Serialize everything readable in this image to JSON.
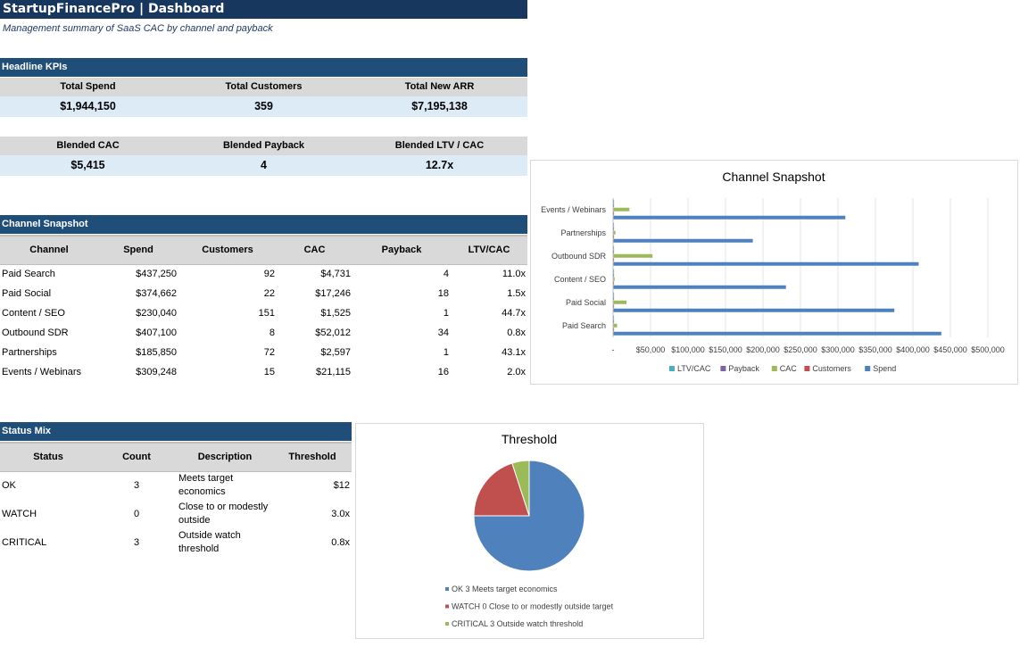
{
  "header": {
    "title": "StartupFinancePro | Dashboard",
    "subtitle": "Management summary of SaaS CAC by channel and payback"
  },
  "kpis": {
    "section_title": "Headline KPIs",
    "row1": [
      {
        "label": "Total Spend",
        "value": "$1,944,150"
      },
      {
        "label": "Total Customers",
        "value": "359"
      },
      {
        "label": "Total New ARR",
        "value": "$7,195,138"
      }
    ],
    "row2": [
      {
        "label": "Blended CAC",
        "value": "$5,415"
      },
      {
        "label": "Blended Payback",
        "value": "4"
      },
      {
        "label": "Blended LTV / CAC",
        "value": "12.7x"
      }
    ]
  },
  "channel_snapshot": {
    "section_title": "Channel Snapshot",
    "columns": [
      "Channel",
      "Spend",
      "Customers",
      "CAC",
      "Payback",
      "LTV/CAC"
    ],
    "rows": [
      [
        "Paid Search",
        "$437,250",
        "92",
        "$4,731",
        "4",
        "11.0x"
      ],
      [
        "Paid Social",
        "$374,662",
        "22",
        "$17,246",
        "18",
        "1.5x"
      ],
      [
        "Content / SEO",
        "$230,040",
        "151",
        "$1,525",
        "1",
        "44.7x"
      ],
      [
        "Outbound SDR",
        "$407,100",
        "8",
        "$52,012",
        "34",
        "0.8x"
      ],
      [
        "Partnerships",
        "$185,850",
        "72",
        "$2,597",
        "1",
        "43.1x"
      ],
      [
        "Events / Webinars",
        "$309,248",
        "15",
        "$21,115",
        "16",
        "2.0x"
      ]
    ]
  },
  "status_mix": {
    "section_title": "Status Mix",
    "columns": [
      "Status",
      "Count",
      "Description",
      "Threshold"
    ],
    "rows": [
      [
        "OK",
        "3",
        "Meets target economics",
        "$12"
      ],
      [
        "WATCH",
        "0",
        "Close to or modestly outside",
        "3.0x"
      ],
      [
        "CRITICAL",
        "3",
        "Outside watch threshold",
        "0.8x"
      ]
    ]
  },
  "chart_data": [
    {
      "type": "bar",
      "orientation": "horizontal",
      "title": "Channel Snapshot",
      "categories": [
        "Paid Search",
        "Paid Social",
        "Content / SEO",
        "Outbound SDR",
        "Partnerships",
        "Events / Webinars"
      ],
      "series": [
        {
          "name": "Spend",
          "color": "#4f81bd",
          "values": [
            437250,
            374662,
            230040,
            407100,
            185850,
            309248
          ]
        },
        {
          "name": "Customers",
          "color": "#c0504d",
          "values": [
            92,
            22,
            151,
            8,
            72,
            15
          ]
        },
        {
          "name": "CAC",
          "color": "#9bbb59",
          "values": [
            4731,
            17246,
            1525,
            52012,
            2597,
            21115
          ]
        },
        {
          "name": "Payback",
          "color": "#8064a2",
          "values": [
            4,
            18,
            1,
            34,
            1,
            16
          ]
        },
        {
          "name": "LTV/CAC",
          "color": "#4bacc6",
          "values": [
            11.0,
            1.5,
            44.7,
            0.8,
            43.1,
            2.0
          ]
        }
      ],
      "legend_order": [
        "LTV/CAC",
        "Payback",
        "CAC",
        "Customers",
        "Spend"
      ],
      "xlim": [
        0,
        500000
      ],
      "xticks": [
        "-",
        "$50,000",
        "$100,000",
        "$150,000",
        "$200,000",
        "$250,000",
        "$300,000",
        "$350,000",
        "$400,000",
        "$450,000",
        "$500,000"
      ],
      "grid": true,
      "legend": "bottom"
    },
    {
      "type": "pie",
      "title": "Threshold",
      "slices": [
        {
          "label": "OK 3 Meets target economics",
          "value": 3,
          "color": "#4f81bd"
        },
        {
          "label": "WATCH 0 Close to or modestly outside target",
          "value": 0.8,
          "color": "#c0504d"
        },
        {
          "label": "CRITICAL 3 Outside watch threshold",
          "value": 0.2,
          "color": "#9bbb59"
        }
      ],
      "legend": "bottom"
    }
  ]
}
